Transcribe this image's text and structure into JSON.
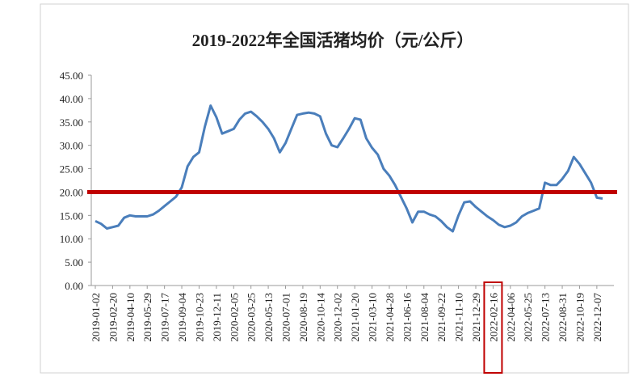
{
  "chart_data": {
    "type": "line",
    "title": "2019-2022年全国活猪均价（元/公斤）",
    "categories": [
      "2019-01-02",
      null,
      null,
      "2019-02-20",
      null,
      null,
      "2019-04-10",
      null,
      null,
      "2019-05-29",
      null,
      null,
      "2019-07-17",
      null,
      null,
      "2019-09-04",
      null,
      null,
      "2019-10-23",
      null,
      null,
      "2019-12-11",
      null,
      null,
      "2020-02-05",
      null,
      null,
      "2020-03-25",
      null,
      null,
      "2020-05-13",
      null,
      null,
      "2020-07-01",
      null,
      null,
      "2020-08-19",
      null,
      null,
      "2020-10-14",
      null,
      null,
      "2020-12-02",
      null,
      null,
      "2021-01-20",
      null,
      null,
      "2021-03-10",
      null,
      null,
      "2021-04-28",
      null,
      null,
      "2021-06-16",
      null,
      null,
      "2021-08-04",
      null,
      null,
      "2021-09-22",
      null,
      null,
      "2021-11-10",
      null,
      null,
      "2021-12-29",
      null,
      null,
      "2022-02-16",
      null,
      null,
      "2022-04-06",
      null,
      null,
      "2022-05-25",
      null,
      null,
      "2022-07-13",
      null,
      null,
      "2022-08-31",
      null,
      null,
      "2022-10-19",
      null,
      null,
      "2022-12-07",
      null
    ],
    "series": [
      {
        "name": "活猪均价",
        "color": "#4a7ebb",
        "values": [
          13.8,
          13.2,
          12.2,
          12.5,
          12.8,
          14.5,
          15.0,
          14.8,
          14.8,
          14.8,
          15.2,
          16.0,
          17.0,
          18.0,
          19.0,
          21.0,
          25.5,
          27.5,
          28.5,
          34.0,
          38.5,
          36.0,
          32.5,
          33.0,
          33.5,
          35.5,
          36.8,
          37.2,
          36.2,
          35.0,
          33.5,
          31.5,
          28.5,
          30.5,
          33.5,
          36.5,
          36.8,
          37.0,
          36.8,
          36.2,
          32.5,
          30.0,
          29.6,
          31.5,
          33.5,
          35.8,
          35.5,
          31.5,
          29.5,
          28.0,
          25.0,
          23.5,
          21.5,
          19.0,
          16.5,
          13.5,
          15.8,
          15.8,
          15.2,
          14.8,
          13.8,
          12.5,
          11.6,
          15.0,
          17.8,
          18.0,
          16.8,
          15.8,
          14.8,
          14.0,
          13.0,
          12.5,
          12.8,
          13.5,
          14.8,
          15.5,
          16.0,
          16.5,
          22.0,
          21.5,
          21.5,
          22.8,
          24.5,
          27.5,
          26.0,
          24.0,
          22.0,
          18.8,
          18.6
        ]
      }
    ],
    "ylim": [
      0,
      45
    ],
    "yticks": [
      {
        "value": 0,
        "label": "0.00"
      },
      {
        "value": 5,
        "label": "5.00"
      },
      {
        "value": 10,
        "label": "10.00"
      },
      {
        "value": 15,
        "label": "15.00"
      },
      {
        "value": 20,
        "label": "20.00"
      },
      {
        "value": 25,
        "label": "25.00"
      },
      {
        "value": 30,
        "label": "30.00"
      },
      {
        "value": 35,
        "label": "35.00"
      },
      {
        "value": 40,
        "label": "40.00"
      },
      {
        "value": 45,
        "label": "45.00"
      }
    ],
    "reference_line": {
      "value": 20,
      "color": "#c00000"
    },
    "highlight_category": 69,
    "highlight_color": "#c00000",
    "grid": false
  }
}
